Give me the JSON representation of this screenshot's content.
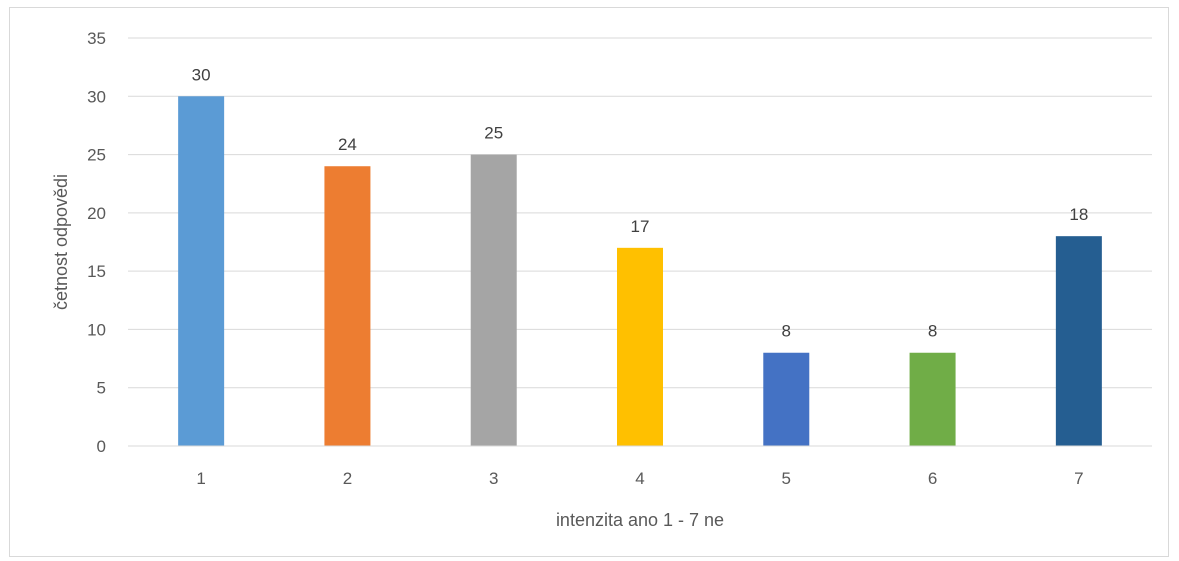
{
  "chart_data": {
    "type": "bar",
    "categories": [
      "1",
      "2",
      "3",
      "4",
      "5",
      "6",
      "7"
    ],
    "values": [
      30,
      24,
      25,
      17,
      8,
      8,
      18
    ],
    "bar_colors": [
      "#5B9BD5",
      "#ED7D31",
      "#A5A5A5",
      "#FFC000",
      "#4472C4",
      "#70AD47",
      "#255E91"
    ],
    "title": "",
    "xlabel": "intenzita ano 1 - 7 ne",
    "ylabel": "četnost odpovědi",
    "ylim": [
      0,
      35
    ],
    "yticks": [
      "0",
      "5",
      "10",
      "15",
      "20",
      "25",
      "30",
      "35"
    ],
    "grid": true,
    "gridline_color": "#d9d9d9",
    "legend": "none"
  }
}
